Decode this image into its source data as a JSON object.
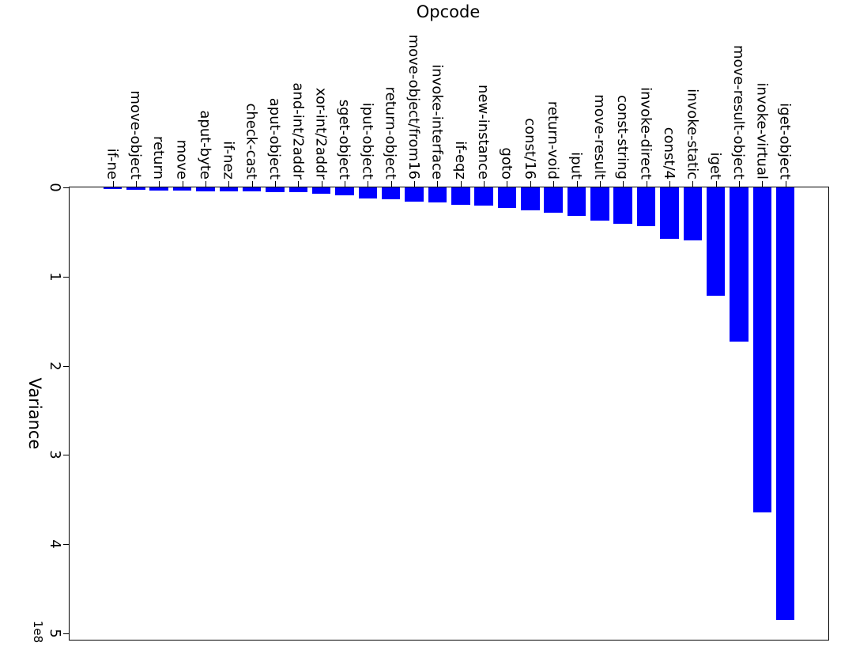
{
  "colors": {
    "bar": "#0000ff",
    "axis": "#000000",
    "background": "#ffffff",
    "text": "#000000"
  },
  "chart_data": {
    "type": "bar",
    "title": "Opcode",
    "value_axis_label": "Variance",
    "value_axis_scale": "1e8",
    "orientation": "image is a 90deg-rotated horizontal bar chart: category axis runs along the top, bars hang downward; value axis runs down the left side",
    "categories": [
      "if-ne",
      "move-object",
      "return",
      "move",
      "aput-byte",
      "if-nez",
      "check-cast",
      "aput-object",
      "and-int/2addr",
      "xor-int/2addr",
      "sget-object",
      "iput-object",
      "return-object",
      "move-object/from16",
      "invoke-interface",
      "if-eqz",
      "new-instance",
      "goto",
      "const/16",
      "return-void",
      "iput",
      "move-result",
      "const-string",
      "invoke-direct",
      "const/4",
      "invoke-static",
      "iget",
      "move-result-object",
      "invoke-virtual",
      "iget-object"
    ],
    "values_e8": [
      0.02,
      0.026,
      0.032,
      0.035,
      0.04,
      0.044,
      0.047,
      0.05,
      0.053,
      0.07,
      0.092,
      0.124,
      0.136,
      0.159,
      0.17,
      0.198,
      0.207,
      0.233,
      0.257,
      0.286,
      0.317,
      0.372,
      0.41,
      0.43,
      0.573,
      0.59,
      1.217,
      1.731,
      3.642,
      4.845
    ],
    "value_ticks_e8": [
      0,
      1,
      2,
      3,
      4,
      5
    ],
    "value_lim_e8": [
      0,
      5.09
    ],
    "grid": false,
    "legend": false
  }
}
